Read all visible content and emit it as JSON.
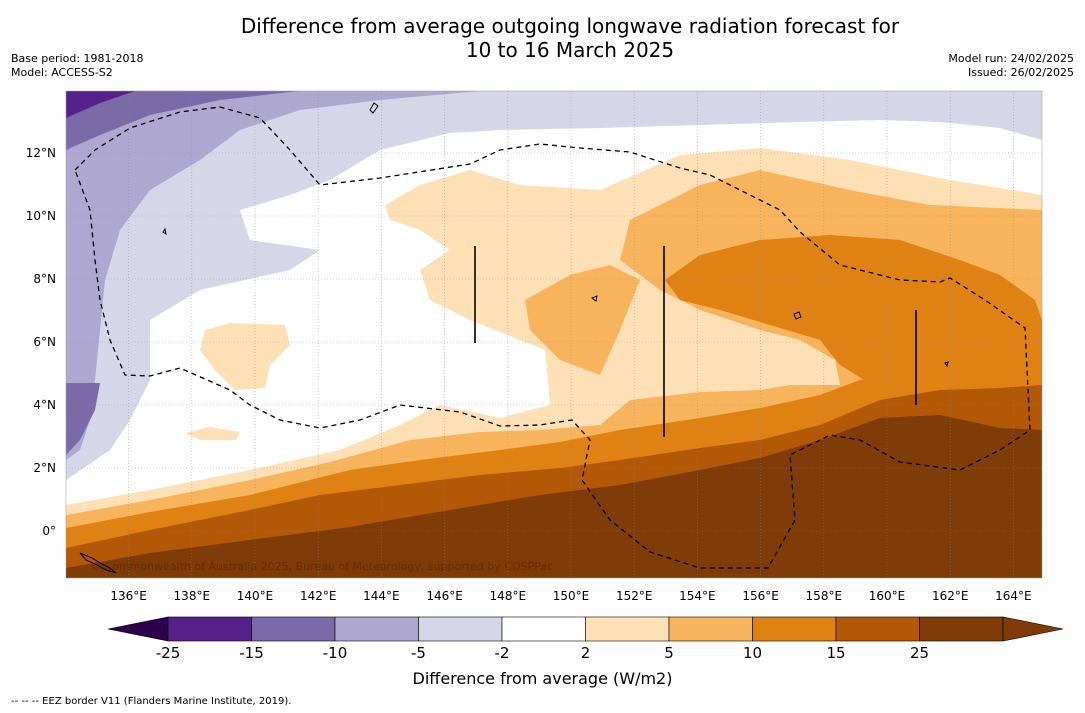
{
  "title_line1": "Difference from average outgoing longwave radiation forecast for",
  "title_line2": "10 to 16 March 2025",
  "base_period": "Base period: 1981-2018",
  "model": "Model: ACCESS-S2",
  "model_run": "Model run: 24/02/2025",
  "issued": "Issued: 26/02/2025",
  "copyright": "© Commonwealth of Australia 2025, Bureau of Meteorology, supported by COSPPac",
  "colorbar_label": "Difference from average (W/m2)",
  "footnote": "--  --  -- EEZ border V11 (Flanders Marine Institute, 2019).",
  "lat_labels": [
    "12°N",
    "10°N",
    "8°N",
    "6°N",
    "4°N",
    "2°N",
    "0°"
  ],
  "lon_labels": [
    "136°E",
    "138°E",
    "140°E",
    "142°E",
    "144°E",
    "146°E",
    "148°E",
    "150°E",
    "152°E",
    "154°E",
    "156°E",
    "158°E",
    "160°E",
    "162°E",
    "164°E"
  ],
  "colorbar_ticks": [
    "-25",
    "-15",
    "-10",
    "-5",
    "-2",
    "2",
    "5",
    "10",
    "15",
    "25"
  ],
  "colorbar_colors": [
    "#56218a",
    "#7b6aa8",
    "#aea7d0",
    "#d6d6e9",
    "#ffffff",
    "#fee0b6",
    "#f8b45c",
    "#e08114",
    "#b35806",
    "#7f3b08"
  ],
  "colorbar_extend_low": "#2d004b",
  "colorbar_extend_high": "#7f3b08"
}
